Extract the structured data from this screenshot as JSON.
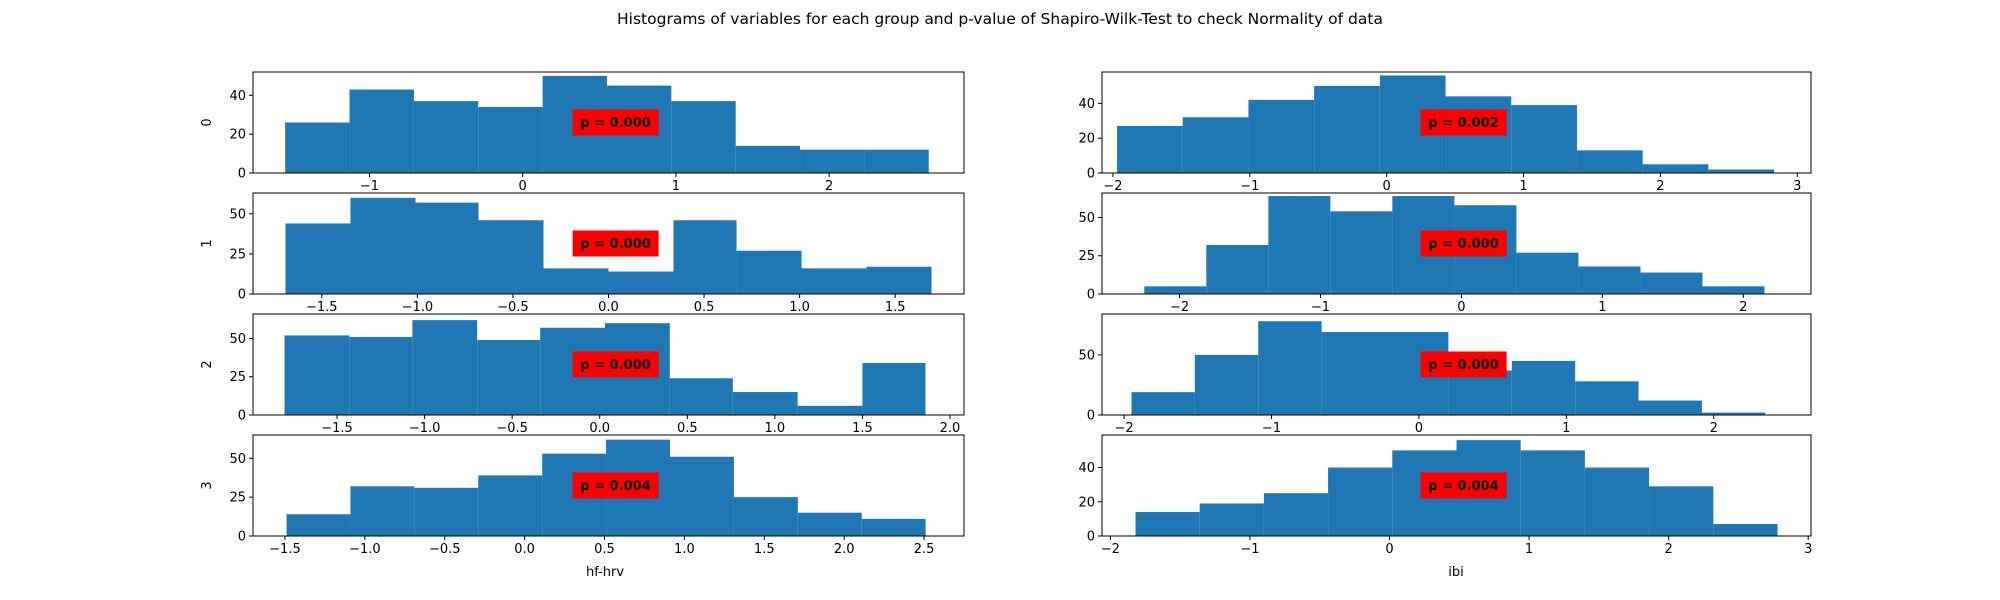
{
  "title": "Histograms of variables for each group and p-value of Shapiro-Wilk-Test to check Normality of data",
  "colors": {
    "bar": "#1f77b4",
    "pbox": "#ff0000",
    "axis": "#000000",
    "background": "#ffffff"
  },
  "columns": [
    {
      "xlabel": "hf-hrv"
    },
    {
      "xlabel": "ibi"
    }
  ],
  "rows": [
    {
      "ylabel": "0"
    },
    {
      "ylabel": "1"
    },
    {
      "ylabel": "2"
    },
    {
      "ylabel": "3"
    }
  ],
  "chart_data": [
    {
      "type": "bar",
      "row": 0,
      "col": 0,
      "xlim": [
        -1.76,
        2.88
      ],
      "ylim": [
        0,
        52
      ],
      "xticks": [
        -1,
        0,
        1,
        2
      ],
      "yticks": [
        0,
        20,
        40
      ],
      "edges": [
        -1.55,
        -1.13,
        -0.71,
        -0.29,
        0.13,
        0.55,
        0.97,
        1.39,
        1.81,
        2.23,
        2.65
      ],
      "values": [
        26,
        43,
        37,
        34,
        50,
        45,
        37,
        14,
        12,
        12
      ],
      "annotation": "p = 0.000"
    },
    {
      "type": "bar",
      "row": 0,
      "col": 1,
      "xlim": [
        -2.08,
        3.1
      ],
      "ylim": [
        0,
        58
      ],
      "xticks": [
        -2,
        -1,
        0,
        1,
        2,
        3
      ],
      "yticks": [
        0,
        20,
        40
      ],
      "edges": [
        -1.97,
        -1.49,
        -1.01,
        -0.53,
        -0.05,
        0.43,
        0.91,
        1.39,
        1.87,
        2.35,
        2.83
      ],
      "values": [
        27,
        32,
        42,
        50,
        56,
        44,
        39,
        13,
        5,
        2
      ],
      "annotation": "p = 0.002"
    },
    {
      "type": "bar",
      "row": 1,
      "col": 0,
      "xlim": [
        -1.86,
        1.86
      ],
      "ylim": [
        0,
        63
      ],
      "xticks": [
        -1.5,
        -1.0,
        -0.5,
        0.0,
        0.5,
        1.0,
        1.5
      ],
      "yticks": [
        0,
        25,
        50
      ],
      "edges": [
        -1.69,
        -1.35,
        -1.01,
        -0.68,
        -0.34,
        0.0,
        0.34,
        0.67,
        1.01,
        1.35,
        1.69
      ],
      "values": [
        44,
        60,
        57,
        46,
        16,
        14,
        46,
        27,
        16,
        17
      ],
      "annotation": "p = 0.000"
    },
    {
      "type": "bar",
      "row": 1,
      "col": 1,
      "xlim": [
        -2.55,
        2.48
      ],
      "ylim": [
        0,
        66
      ],
      "xticks": [
        -2,
        -1,
        0,
        1,
        2
      ],
      "yticks": [
        0,
        25,
        50
      ],
      "edges": [
        -2.25,
        -1.81,
        -1.37,
        -0.93,
        -0.49,
        -0.05,
        0.39,
        0.83,
        1.27,
        1.71,
        2.15
      ],
      "values": [
        5,
        32,
        64,
        54,
        64,
        58,
        27,
        18,
        14,
        5
      ],
      "annotation": "p = 0.000"
    },
    {
      "type": "bar",
      "row": 2,
      "col": 0,
      "xlim": [
        -1.98,
        2.08
      ],
      "ylim": [
        0,
        66
      ],
      "xticks": [
        -1.5,
        -1.0,
        -0.5,
        0.0,
        0.5,
        1.0,
        1.5,
        2.0
      ],
      "yticks": [
        0,
        25,
        50
      ],
      "edges": [
        -1.8,
        -1.43,
        -1.07,
        -0.7,
        -0.34,
        0.03,
        0.4,
        0.76,
        1.13,
        1.5,
        1.86
      ],
      "values": [
        52,
        51,
        62,
        49,
        57,
        60,
        24,
        15,
        6,
        34
      ],
      "annotation": "p = 0.000"
    },
    {
      "type": "bar",
      "row": 2,
      "col": 1,
      "xlim": [
        -2.15,
        2.66
      ],
      "ylim": [
        0,
        84
      ],
      "xticks": [
        -2,
        -1,
        0,
        1,
        2
      ],
      "yticks": [
        0,
        50
      ],
      "edges": [
        -1.95,
        -1.52,
        -1.09,
        -0.66,
        -0.23,
        0.2,
        0.63,
        1.06,
        1.49,
        1.92,
        2.35
      ],
      "values": [
        19,
        50,
        78,
        69,
        69,
        37,
        45,
        28,
        12,
        2
      ],
      "annotation": "p = 0.000"
    },
    {
      "type": "bar",
      "row": 3,
      "col": 0,
      "xlim": [
        -1.7,
        2.75
      ],
      "ylim": [
        0,
        65
      ],
      "xticks": [
        -1.5,
        -1.0,
        -0.5,
        0.0,
        0.5,
        1.0,
        1.5,
        2.0,
        2.5
      ],
      "yticks": [
        0,
        25,
        50
      ],
      "edges": [
        -1.49,
        -1.09,
        -0.69,
        -0.29,
        0.11,
        0.51,
        0.91,
        1.31,
        1.71,
        2.11,
        2.51
      ],
      "values": [
        14,
        32,
        31,
        39,
        53,
        62,
        51,
        25,
        15,
        11
      ],
      "annotation": "p = 0.004"
    },
    {
      "type": "bar",
      "row": 3,
      "col": 1,
      "xlim": [
        -2.06,
        3.02
      ],
      "ylim": [
        0,
        59
      ],
      "xticks": [
        -2,
        -1,
        0,
        1,
        2,
        3
      ],
      "yticks": [
        0,
        20,
        40
      ],
      "edges": [
        -1.82,
        -1.36,
        -0.9,
        -0.44,
        0.02,
        0.48,
        0.94,
        1.4,
        1.86,
        2.32,
        2.78
      ],
      "values": [
        14,
        19,
        25,
        40,
        50,
        56,
        50,
        40,
        29,
        7
      ],
      "annotation": "p = 0.004"
    }
  ]
}
